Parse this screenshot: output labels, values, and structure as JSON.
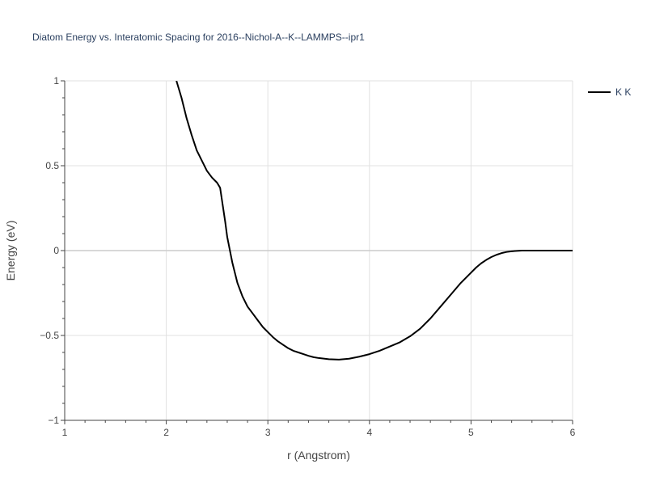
{
  "chart_data": {
    "type": "line",
    "title": "Diatom Energy vs. Interatomic Spacing for 2016--Nichol-A--K--LAMMPS--ipr1",
    "xlabel": "r (Angstrom)",
    "ylabel": "Energy (eV)",
    "xlim": [
      1,
      6
    ],
    "ylim": [
      -1,
      1
    ],
    "x_ticks": [
      1,
      2,
      3,
      4,
      5,
      6
    ],
    "x_tick_labels": [
      "1",
      "2",
      "3",
      "4",
      "5",
      "6"
    ],
    "y_ticks": [
      -1,
      -0.5,
      0,
      0.5,
      1
    ],
    "y_tick_labels": [
      "−1",
      "−0.5",
      "0",
      "0.5",
      "1"
    ],
    "grid": true,
    "legend_position": "top-right",
    "series": [
      {
        "name": "K K",
        "color": "#000000",
        "x": [
          2.1,
          2.15,
          2.2,
          2.25,
          2.3,
          2.35,
          2.4,
          2.45,
          2.5,
          2.53,
          2.55,
          2.58,
          2.6,
          2.65,
          2.7,
          2.75,
          2.8,
          2.85,
          2.9,
          2.95,
          3.0,
          3.05,
          3.1,
          3.15,
          3.2,
          3.25,
          3.3,
          3.35,
          3.4,
          3.45,
          3.5,
          3.6,
          3.7,
          3.8,
          3.9,
          4.0,
          4.1,
          4.2,
          4.3,
          4.4,
          4.5,
          4.6,
          4.7,
          4.8,
          4.9,
          5.0,
          5.05,
          5.1,
          5.15,
          5.2,
          5.25,
          5.3,
          5.35,
          5.4,
          5.5,
          5.6,
          5.8,
          6.0
        ],
        "y": [
          1.0,
          0.9,
          0.78,
          0.68,
          0.59,
          0.53,
          0.47,
          0.43,
          0.4,
          0.37,
          0.29,
          0.17,
          0.08,
          -0.07,
          -0.19,
          -0.27,
          -0.33,
          -0.37,
          -0.41,
          -0.45,
          -0.48,
          -0.51,
          -0.535,
          -0.555,
          -0.575,
          -0.59,
          -0.6,
          -0.61,
          -0.62,
          -0.628,
          -0.633,
          -0.64,
          -0.642,
          -0.637,
          -0.625,
          -0.61,
          -0.59,
          -0.565,
          -0.54,
          -0.505,
          -0.46,
          -0.4,
          -0.33,
          -0.26,
          -0.19,
          -0.13,
          -0.1,
          -0.075,
          -0.055,
          -0.038,
          -0.025,
          -0.015,
          -0.008,
          -0.004,
          0.0,
          0.0,
          0.0,
          0.0
        ]
      }
    ]
  }
}
